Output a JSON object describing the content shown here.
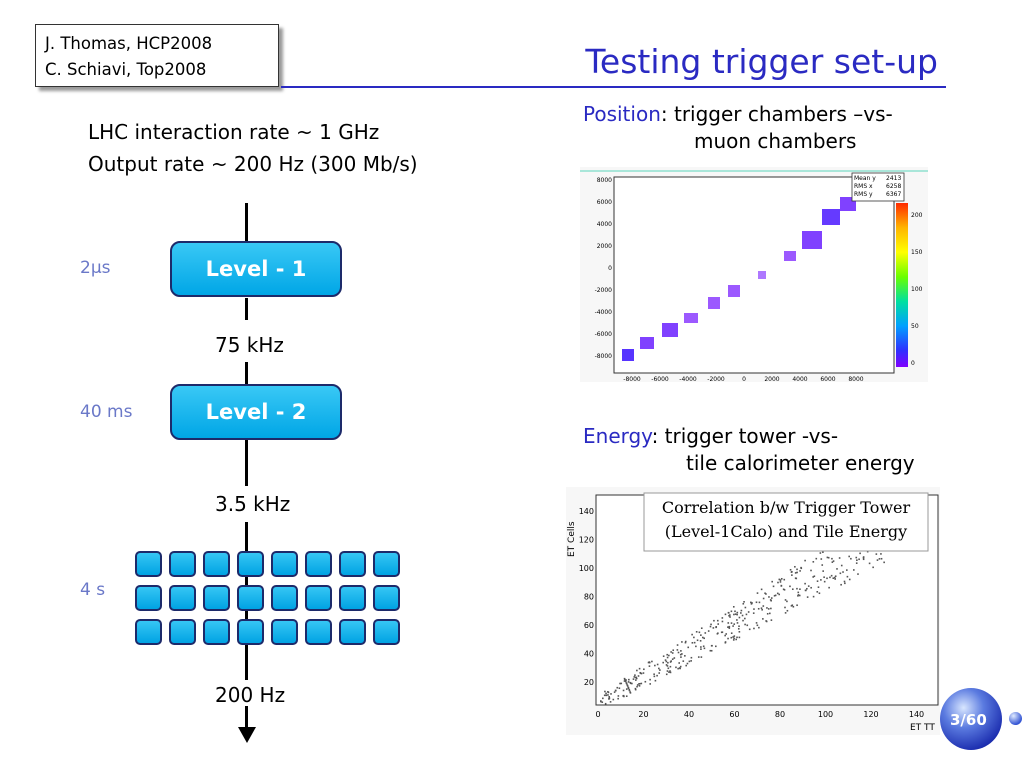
{
  "authors": {
    "line1": "J. Thomas, HCP2008",
    "line2": "C. Schiavi, Top2008"
  },
  "title": "Testing trigger set-up",
  "rates": {
    "interaction": "LHC interaction rate ~ 1 GHz",
    "output": "Output rate ~ 200 Hz (300 Mb/s)"
  },
  "pipeline": {
    "level1": {
      "label": "Level - 1",
      "latency": "2μs"
    },
    "rate_after_l1": "75 kHz",
    "level2": {
      "label": "Level - 2",
      "latency": "40 ms"
    },
    "rate_after_l2": "3.5 kHz",
    "farm": {
      "latency": "4 s",
      "rows": 3,
      "cols": 8
    },
    "final_rate": "200 Hz"
  },
  "position_panel": {
    "heading_key": "Position",
    "heading_rest": ": trigger chambers –vs-",
    "heading_line2": "muon chambers",
    "stats": {
      "mean_y_label": "Mean y",
      "mean_y": "2413",
      "rms_x_label": "RMS x",
      "rms_x": "6258",
      "rms_y_label": "RMS y",
      "rms_y": "6367"
    },
    "y_ticks": [
      "8000",
      "6000",
      "4000",
      "2000",
      "0",
      "-2000",
      "-4000",
      "-6000",
      "-8000"
    ],
    "x_ticks": [
      "-8000",
      "-6000",
      "-4000",
      "-2000",
      "0",
      "2000",
      "4000",
      "6000",
      "8000"
    ],
    "z_ticks": [
      "200",
      "150",
      "100",
      "50",
      "0"
    ]
  },
  "energy_panel": {
    "heading_key": "Energy",
    "heading_rest": ": trigger tower -vs-",
    "heading_line2": "tile calorimeter energy",
    "inset_line1": "Correlation b/w Trigger Tower",
    "inset_line2": "(Level-1Calo) and Tile Energy",
    "ylabel": "ET Cells",
    "xlabel": "ET TT",
    "y_ticks": [
      "140",
      "120",
      "100",
      "80",
      "60",
      "40",
      "20"
    ],
    "x_ticks": [
      "0",
      "20",
      "40",
      "60",
      "80",
      "100",
      "120",
      "140"
    ]
  },
  "page_number": "3/60",
  "colors": {
    "title": "#2a2ac2",
    "box_fill": "#00a6e6",
    "box_border": "#1d2a6a"
  }
}
